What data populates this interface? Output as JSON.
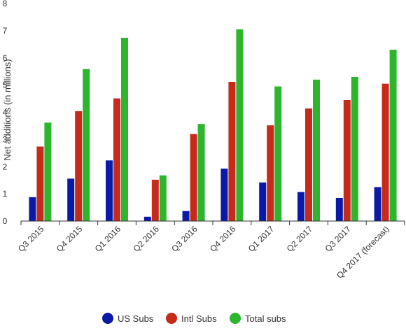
{
  "chart_data": {
    "type": "bar",
    "title": "",
    "xlabel": "",
    "ylabel": "Net additions (in millions)",
    "ylim": [
      0,
      8
    ],
    "yticks": [
      0,
      1,
      2,
      3,
      4,
      5,
      6,
      7,
      8
    ],
    "grid": false,
    "legend": "bottom",
    "categories": [
      "Q3 2015",
      "Q4 2015",
      "Q1 2016",
      "Q2 2016",
      "Q3 2016",
      "Q4 2016",
      "Q1 2017",
      "Q2 2017",
      "Q3 2017",
      "Q4 2017 (forecast)"
    ],
    "series": [
      {
        "name": "US Subs",
        "color": "#0a1aa6",
        "values": [
          0.88,
          1.56,
          2.23,
          0.16,
          0.37,
          1.93,
          1.42,
          1.07,
          0.85,
          1.25
        ]
      },
      {
        "name": "Intl Subs",
        "color": "#c62a1a",
        "values": [
          2.74,
          4.04,
          4.51,
          1.52,
          3.2,
          5.12,
          3.52,
          4.14,
          4.45,
          5.05
        ]
      },
      {
        "name": "Total subs",
        "color": "#2db52d",
        "values": [
          3.62,
          5.59,
          6.74,
          1.68,
          3.57,
          7.05,
          4.95,
          5.2,
          5.3,
          6.3
        ]
      }
    ]
  }
}
